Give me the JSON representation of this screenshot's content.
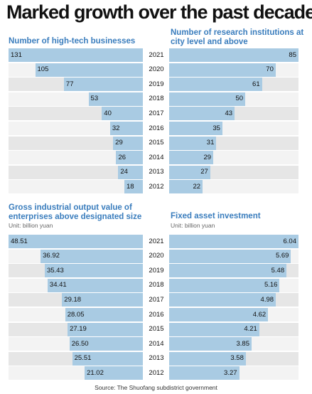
{
  "title": "Marked growth over the past decade",
  "source": "Source: The Shuofang subdistrict government",
  "years": [
    "2021",
    "2020",
    "2019",
    "2018",
    "2017",
    "2016",
    "2015",
    "2014",
    "2013",
    "2012"
  ],
  "colors": {
    "bar": "#a9cbe3",
    "row_odd": "#e6e6e6",
    "row_even": "#f3f3f3",
    "title": "#3a7dbd"
  },
  "chart_data": [
    {
      "type": "bar",
      "orientation": "horizontal",
      "direction": "right-to-left",
      "title": "Number of high-tech businesses",
      "unit": "",
      "categories": [
        "2021",
        "2020",
        "2019",
        "2018",
        "2017",
        "2016",
        "2015",
        "2014",
        "2013",
        "2012"
      ],
      "values": [
        131,
        105,
        77,
        53,
        40,
        32,
        29,
        26,
        24,
        18
      ],
      "labels": [
        "131",
        "105",
        "77",
        "53",
        "40",
        "32",
        "29",
        "26",
        "24",
        "18"
      ],
      "xlim": [
        0,
        131
      ]
    },
    {
      "type": "bar",
      "orientation": "horizontal",
      "direction": "left-to-right",
      "title": "Number of research institutions at city level and above",
      "unit": "",
      "categories": [
        "2021",
        "2020",
        "2019",
        "2018",
        "2017",
        "2016",
        "2015",
        "2014",
        "2013",
        "2012"
      ],
      "values": [
        85,
        70,
        61,
        50,
        43,
        35,
        31,
        29,
        27,
        22
      ],
      "labels": [
        "85",
        "70",
        "61",
        "50",
        "43",
        "35",
        "31",
        "29",
        "27",
        "22"
      ],
      "xlim": [
        0,
        85
      ]
    },
    {
      "type": "bar",
      "orientation": "horizontal",
      "direction": "right-to-left",
      "title": "Gross industrial output value of enterprises above designated size",
      "unit": "Unit: billion yuan",
      "categories": [
        "2021",
        "2020",
        "2019",
        "2018",
        "2017",
        "2016",
        "2015",
        "2014",
        "2013",
        "2012"
      ],
      "values": [
        48.51,
        36.92,
        35.43,
        34.41,
        29.18,
        28.05,
        27.19,
        26.5,
        25.51,
        21.02
      ],
      "labels": [
        "48.51",
        "36.92",
        "35.43",
        "34.41",
        "29.18",
        "28.05",
        "27.19",
        "26.50",
        "25.51",
        "21.02"
      ],
      "xlim": [
        0,
        48.51
      ]
    },
    {
      "type": "bar",
      "orientation": "horizontal",
      "direction": "left-to-right",
      "title": "Fixed asset investment",
      "unit": "Unit: billion yuan",
      "categories": [
        "2021",
        "2020",
        "2019",
        "2018",
        "2017",
        "2016",
        "2015",
        "2014",
        "2013",
        "2012"
      ],
      "values": [
        6.04,
        5.69,
        5.48,
        5.16,
        4.98,
        4.62,
        4.21,
        3.85,
        3.58,
        3.27
      ],
      "labels": [
        "6.04",
        "5.69",
        "5.48",
        "5.16",
        "4.98",
        "4.62",
        "4.21",
        "3.85",
        "3.58",
        "3.27"
      ],
      "xlim": [
        0,
        6.04
      ]
    }
  ]
}
